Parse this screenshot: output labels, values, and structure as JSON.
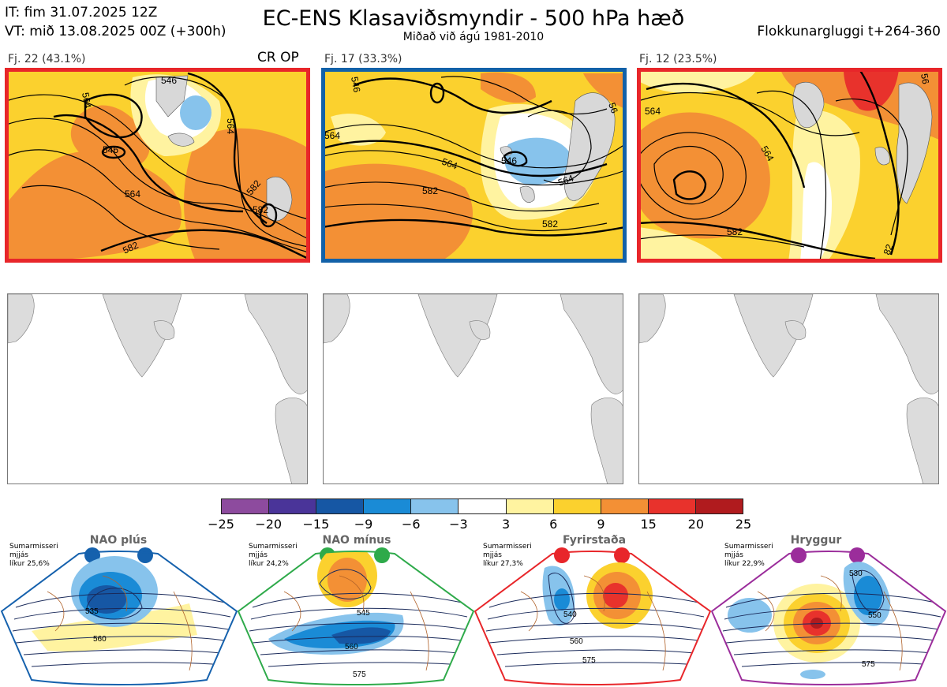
{
  "header": {
    "it_line": "IT: fim 31.07.2025 12Z",
    "vt_line": "VT: mið 13.08.2025 00Z  (+300h)",
    "title": "EC-ENS Klasaviðsmyndir - 500 hPa hæð",
    "subtitle": "Miðað við ágú 1981-2010",
    "window": "Flokkunargluggi t+264-360"
  },
  "clusters": [
    {
      "label": "Fj. 22 (43.1%)",
      "tag": "CR OP",
      "border_color": "#e8262a",
      "contours": [
        "546",
        "564",
        "546",
        "564",
        "582",
        "582",
        "582"
      ]
    },
    {
      "label": "Fj. 17 (33.3%)",
      "tag": "",
      "border_color": "#1261a8",
      "contours": [
        "546",
        "564",
        "564",
        "546",
        "564",
        "582",
        "582",
        "56"
      ]
    },
    {
      "label": "Fj. 12 (23.5%)",
      "tag": "",
      "border_color": "#e8262a",
      "contours": [
        "564",
        "564",
        "582",
        "56",
        "82"
      ]
    }
  ],
  "colorbar": {
    "ticks": [
      "−25",
      "−20",
      "−15",
      "−9",
      "−6",
      "−3",
      "3",
      "6",
      "9",
      "15",
      "20",
      "25"
    ],
    "colors": [
      "#8d4b9e",
      "#4a3499",
      "#1657a4",
      "#1a8bd6",
      "#87c3ec",
      "#ffffff",
      "#fff3a0",
      "#fbd12e",
      "#f39035",
      "#e8322c",
      "#b01b1e"
    ]
  },
  "regimes": [
    {
      "name": "NAO plús",
      "note": "Sumarmisseri\nmjjás\nlíkur 25,6%",
      "color": "#1561ad",
      "contours": [
        "535",
        "560"
      ]
    },
    {
      "name": "NAO mínus",
      "note": "Sumarmisseri\nmjjás\nlíkur 24,2%",
      "color": "#2eaa4a",
      "contours": [
        "545",
        "560",
        "575"
      ]
    },
    {
      "name": "Fyrirstaða",
      "note": "Sumarmisseri\nmjjás\nlíkur 27,3%",
      "color": "#e8262a",
      "contours": [
        "540",
        "560",
        "575"
      ]
    },
    {
      "name": "Hryggur",
      "note": "Sumarmisseri\nmjjás\nlíkur 22,9%",
      "color": "#9b2d9b",
      "contours": [
        "530",
        "550",
        "575"
      ]
    }
  ]
}
